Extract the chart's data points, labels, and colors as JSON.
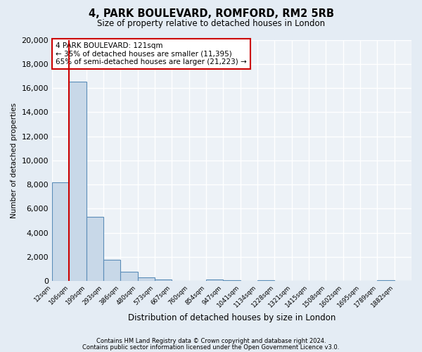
{
  "title": "4, PARK BOULEVARD, ROMFORD, RM2 5RB",
  "subtitle": "Size of property relative to detached houses in London",
  "xlabel": "Distribution of detached houses by size in London",
  "ylabel": "Number of detached properties",
  "bar_color": "#c8d8e8",
  "bar_edge_color": "#5b8db8",
  "background_color": "#edf2f7",
  "fig_background_color": "#e4ecf4",
  "grid_color": "#ffffff",
  "bin_labels": [
    "12sqm",
    "106sqm",
    "199sqm",
    "293sqm",
    "386sqm",
    "480sqm",
    "573sqm",
    "667sqm",
    "760sqm",
    "854sqm",
    "947sqm",
    "1041sqm",
    "1134sqm",
    "1228sqm",
    "1321sqm",
    "1415sqm",
    "1508sqm",
    "1602sqm",
    "1695sqm",
    "1789sqm",
    "1882sqm"
  ],
  "bin_values": [
    8200,
    16500,
    5300,
    1750,
    750,
    300,
    150,
    0,
    0,
    100,
    60,
    0,
    60,
    0,
    0,
    0,
    0,
    0,
    0,
    50,
    0
  ],
  "red_line_x": 1,
  "ylim": [
    0,
    20000
  ],
  "yticks": [
    0,
    2000,
    4000,
    6000,
    8000,
    10000,
    12000,
    14000,
    16000,
    18000,
    20000
  ],
  "annotation_title": "4 PARK BOULEVARD: 121sqm",
  "annotation_line1": "← 35% of detached houses are smaller (11,395)",
  "annotation_line2": "65% of semi-detached houses are larger (21,223) →",
  "annotation_box_color": "#ffffff",
  "annotation_box_edge": "#cc0000",
  "footer_line1": "Contains HM Land Registry data © Crown copyright and database right 2024.",
  "footer_line2": "Contains public sector information licensed under the Open Government Licence v3.0."
}
